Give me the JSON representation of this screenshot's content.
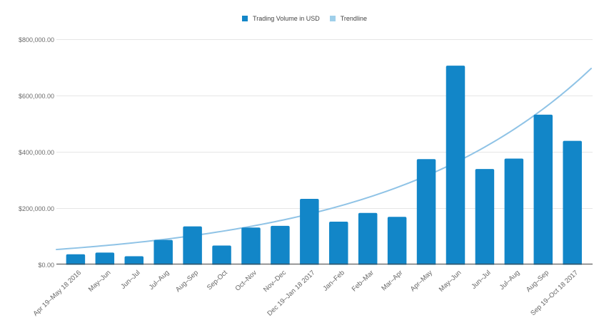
{
  "chart_data": {
    "type": "bar",
    "title": "",
    "categories": [
      "Apr 19–May 18 2016",
      "May–Jun",
      "Jun–Jul",
      "Jul–Aug",
      "Aug–Sep",
      "Sep-Oct",
      "Oct–Nov",
      "Nov–Dec",
      "Dec 19–Jan 18 2017",
      "Jan–Feb",
      "Feb–Mar",
      "Mar–Apr",
      "Apr–May",
      "May–Jun",
      "Jun–Jul",
      "Jul–Aug",
      "Aug–Sep",
      "Sep 19–Oct 18 2017"
    ],
    "series": [
      {
        "name": "Trading Volume in USD",
        "type": "column",
        "color": "#1286c8",
        "values": [
          36000,
          42000,
          29000,
          87000,
          135000,
          67000,
          131000,
          137000,
          233000,
          152000,
          183000,
          169000,
          374000,
          706000,
          339000,
          376000,
          532000,
          439000
        ]
      },
      {
        "name": "Trendline",
        "type": "trendline",
        "shape": "exponential",
        "color": "#8fc3e6",
        "legend_color": "#9fcfea",
        "start_value": 53000,
        "end_value": 696000
      }
    ],
    "y_axis": {
      "tick_values": [
        0,
        200000,
        400000,
        600000,
        800000
      ],
      "tick_labels": [
        "$0.00",
        "$200,000.00",
        "$400,000.00",
        "$600,000.00",
        "$800,000.00"
      ],
      "ylim": [
        0,
        800000
      ],
      "grid": true,
      "gridline_color": "#e6e6e6",
      "baseline_color": "#424242"
    },
    "xlabel": "",
    "ylabel": "",
    "legend_position": "top-center",
    "background_color": "#ffffff"
  }
}
